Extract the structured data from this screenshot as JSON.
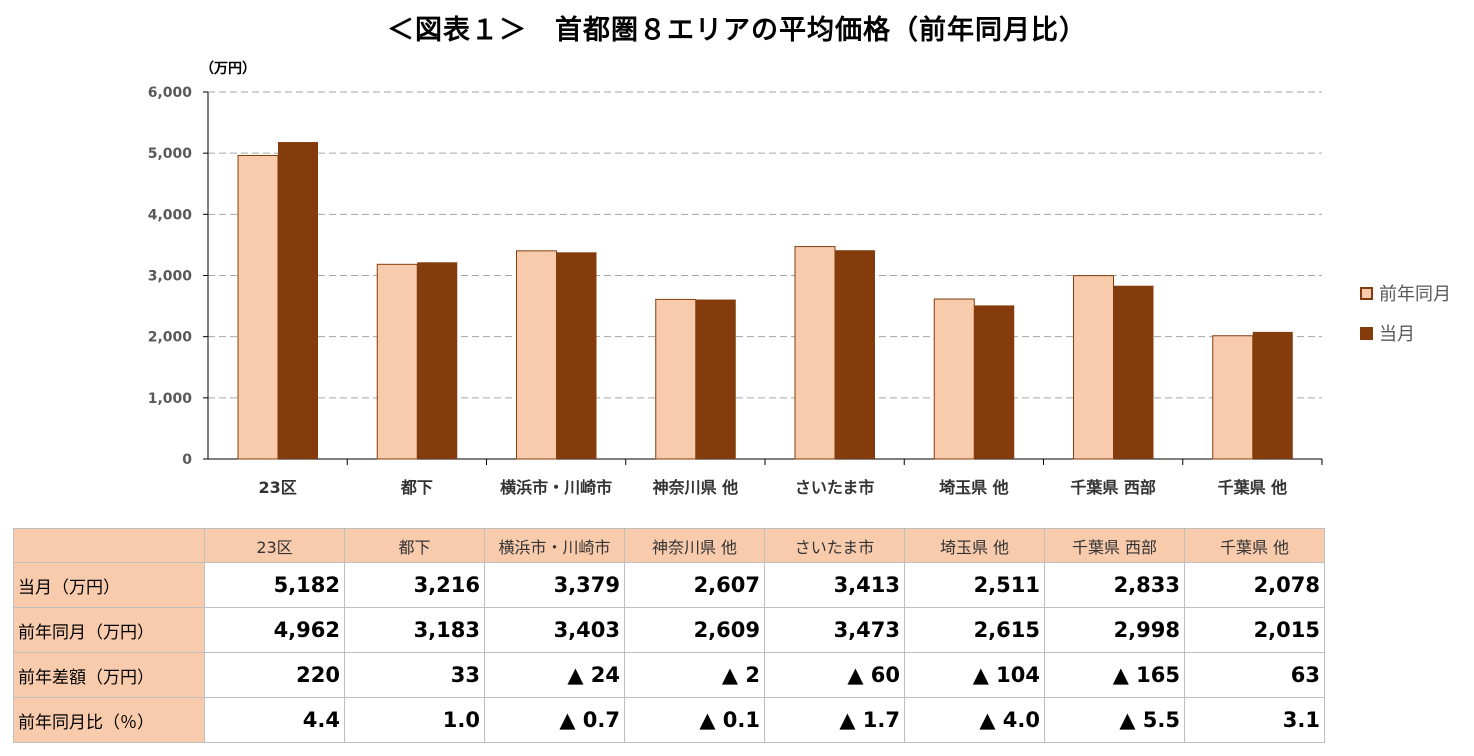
{
  "title": "＜図表１＞　首都圏８エリアの平均価格（前年同月比）",
  "chart_data": {
    "type": "bar",
    "ylabel": "（万円）",
    "ylim": [
      0,
      6000
    ],
    "yticks": [
      "0",
      "1,000",
      "2,000",
      "3,000",
      "4,000",
      "5,000",
      "6,000"
    ],
    "grid": true,
    "legend_position": "right",
    "categories": [
      "23区",
      "都下",
      "横浜市・川崎市",
      "神奈川県 他",
      "さいたま市",
      "埼玉県 他",
      "千葉県 西部",
      "千葉県 他"
    ],
    "series": [
      {
        "name": "前年同月",
        "color": "#f8cbad",
        "values": [
          4962,
          3183,
          3403,
          2609,
          3473,
          2615,
          2998,
          2015
        ]
      },
      {
        "name": "当月",
        "color": "#843c0c",
        "values": [
          5182,
          3216,
          3379,
          2607,
          3413,
          2511,
          2833,
          2078
        ]
      }
    ]
  },
  "table": {
    "header": [
      "23区",
      "都下",
      "横浜市・川崎市",
      "神奈川県 他",
      "さいたま市",
      "埼玉県 他",
      "千葉県 西部",
      "千葉県 他"
    ],
    "rows": [
      {
        "label": "当月（万円）",
        "values": [
          "5,182",
          "3,216",
          "3,379",
          "2,607",
          "3,413",
          "2,511",
          "2,833",
          "2,078"
        ]
      },
      {
        "label": "前年同月（万円）",
        "values": [
          "4,962",
          "3,183",
          "3,403",
          "2,609",
          "3,473",
          "2,615",
          "2,998",
          "2,015"
        ]
      },
      {
        "label": "前年差額（万円）",
        "values": [
          "220",
          "33",
          "▲ 24",
          "▲ 2",
          "▲ 60",
          "▲ 104",
          "▲ 165",
          "63"
        ]
      },
      {
        "label": "前年同月比（％）",
        "values": [
          "4.4",
          "1.0",
          "▲ 0.7",
          "▲ 0.1",
          "▲ 1.7",
          "▲ 4.0",
          "▲ 5.5",
          "3.1"
        ]
      }
    ]
  }
}
